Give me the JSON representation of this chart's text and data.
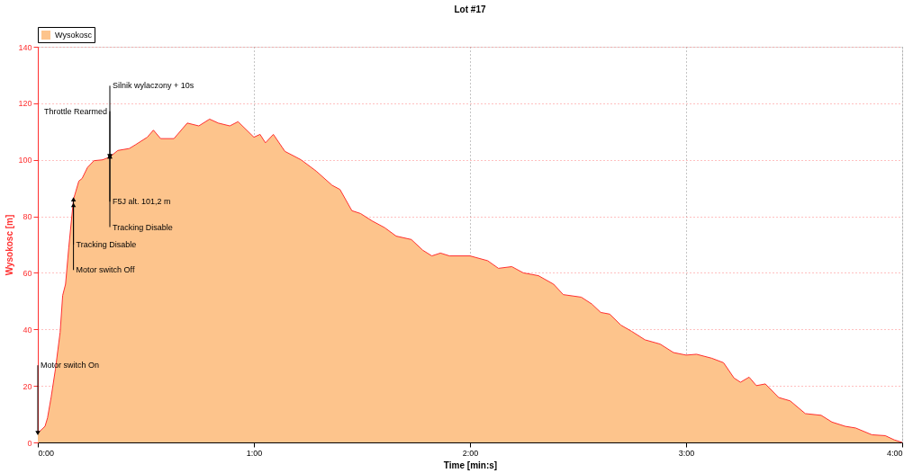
{
  "chart_data": {
    "type": "area",
    "title": "Lot #17",
    "xlabel": "Time [min:s]",
    "ylabel": "Wysokosc [m]",
    "x": [
      0,
      2.0,
      2.7,
      3.7,
      4.9,
      6.2,
      6.9,
      7.7,
      8.6,
      9.9,
      11.4,
      12.3,
      13.8,
      15.6,
      18.0,
      20.0,
      22.2,
      25.4,
      27.2,
      30.4,
      32.1,
      34.1,
      37.8,
      41.5,
      44.7,
      47.7,
      50.1,
      53.3,
      55.6,
      60.0,
      61.7,
      63.2,
      65.4,
      68.6,
      73.1,
      77.3,
      81.7,
      83.9,
      87.2,
      89.6,
      92.8,
      96.3,
      99.5,
      103.7,
      106.9,
      109.4,
      111.8,
      114.3,
      120.0,
      124.9,
      127.9,
      131.6,
      134.8,
      139.0,
      143.2,
      145.9,
      150.9,
      153.8,
      156.3,
      158.8,
      161.9,
      164.9,
      168.6,
      172.8,
      176.5,
      180.0,
      182.9,
      187.1,
      190.4,
      193.3,
      195.1,
      197.5,
      199.5,
      202.0,
      205.7,
      208.9,
      213.1,
      217.5,
      220.5,
      224.2,
      227.1,
      231.6,
      235.3,
      237.8,
      240
    ],
    "series": [
      {
        "name": "Wysokosc",
        "color": "#fdc48c",
        "values": [
          3.3,
          5.7,
          8.7,
          16,
          26,
          39,
          52,
          56,
          69,
          86,
          92.5,
          93.4,
          97.3,
          99.7,
          100,
          101,
          103.3,
          104,
          105.4,
          108,
          110.5,
          107.5,
          107.5,
          113,
          112,
          114.4,
          113,
          112,
          113.5,
          108,
          109,
          106,
          109,
          103,
          100,
          96,
          91,
          89.5,
          82,
          81,
          78.4,
          76,
          73,
          71.8,
          68,
          66,
          67,
          66,
          66,
          64.3,
          61.6,
          62.2,
          60,
          59,
          56,
          52.3,
          51.4,
          49,
          46,
          45.4,
          41.5,
          39.3,
          36.3,
          34.8,
          31.8,
          30.9,
          31.2,
          29.8,
          28.2,
          22.8,
          21.3,
          23.1,
          20.1,
          20.7,
          15.9,
          14.7,
          10.2,
          9.6,
          7.2,
          5.7,
          5.1,
          2.7,
          2.4,
          0.9,
          0
        ]
      }
    ],
    "xlim": [
      0,
      240
    ],
    "xticks": [
      {
        "value": 0,
        "label": "0:00"
      },
      {
        "value": 60,
        "label": "1:00"
      },
      {
        "value": 120,
        "label": "2:00"
      },
      {
        "value": 180,
        "label": "3:00"
      },
      {
        "value": 240,
        "label": "4:00"
      }
    ],
    "ylim": [
      0,
      140
    ],
    "yticks": [
      0,
      20,
      40,
      60,
      80,
      100,
      120,
      140
    ],
    "grid": true,
    "legend": "top left",
    "annotations": [
      {
        "text": "Motor switch On",
        "x": 0,
        "y": 3.3
      },
      {
        "text": "Tracking Disable",
        "x": 9.9,
        "y": 86
      },
      {
        "text": "Motor switch Off",
        "x": 9.9,
        "y": 84
      },
      {
        "text": "Silnik wylaczony + 10s",
        "x": 20.0,
        "y": 101.2
      },
      {
        "text": "Throttle Rearmed",
        "x": 20.0,
        "y": 101.2
      },
      {
        "text": "F5J alt. 101,2 m",
        "x": 20.0,
        "y": 101.2
      },
      {
        "text": "Tracking Disable",
        "x": 20.0,
        "y": 101.2
      }
    ]
  }
}
